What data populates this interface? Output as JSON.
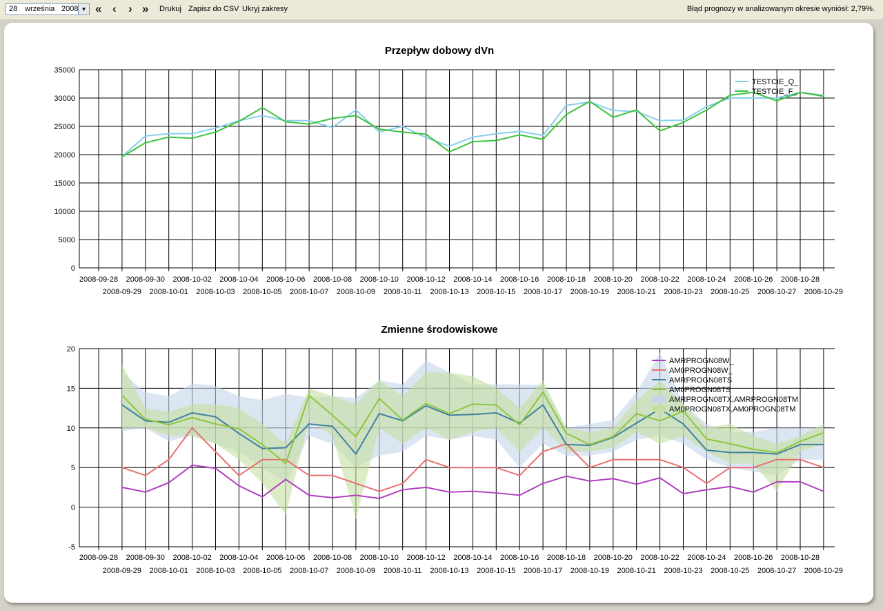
{
  "toolbar": {
    "day": "28",
    "month": "września",
    "year": "2008",
    "nav_first": "«",
    "nav_prev": "‹",
    "nav_next": "›",
    "nav_last": "»",
    "print_label": "Drukuj",
    "csv_label": "Zapisz do CSV",
    "hide_label": "Ukryj zakresy",
    "status_text": "Błąd prognozy w analizowanym okresie wyniósł: 2,79%."
  },
  "chart_data": [
    {
      "type": "line",
      "title": "Przepływ dobowy dVn",
      "xlabel": "",
      "ylabel": "",
      "ylim": [
        0,
        35000
      ],
      "yticks": [
        "0",
        "5000",
        "10000",
        "15000",
        "20000",
        "25000",
        "30000",
        "35000"
      ],
      "grid": true,
      "legend_placement": "top-right",
      "categories": [
        "2008-09-28",
        "2008-09-29",
        "2008-09-30",
        "2008-10-01",
        "2008-10-02",
        "2008-10-03",
        "2008-10-04",
        "2008-10-05",
        "2008-10-06",
        "2008-10-07",
        "2008-10-08",
        "2008-10-09",
        "2008-10-10",
        "2008-10-11",
        "2008-10-12",
        "2008-10-13",
        "2008-10-14",
        "2008-10-15",
        "2008-10-16",
        "2008-10-17",
        "2008-10-18",
        "2008-10-19",
        "2008-10-20",
        "2008-10-21",
        "2008-10-22",
        "2008-10-23",
        "2008-10-24",
        "2008-10-25",
        "2008-10-26",
        "2008-10-27",
        "2008-10-28",
        "2008-10-29"
      ],
      "series": [
        {
          "name": "TESTCIE_Q_",
          "color": "#87ceeb",
          "values": [
            null,
            19700,
            23300,
            23700,
            23700,
            24700,
            26000,
            26900,
            26000,
            26000,
            24800,
            27900,
            24000,
            25000,
            23000,
            21500,
            23100,
            23700,
            24100,
            23400,
            28700,
            29300,
            27800,
            27600,
            26000,
            26100,
            28500,
            30000,
            30000,
            30000,
            31000,
            30500
          ]
        },
        {
          "name": "TESTCIE_F_",
          "color": "#3cc33c",
          "values": [
            null,
            19600,
            22100,
            23100,
            22900,
            24000,
            25900,
            28300,
            25800,
            25400,
            26400,
            26900,
            24500,
            24000,
            23600,
            20500,
            22300,
            22500,
            23500,
            22700,
            27100,
            29400,
            26600,
            27900,
            24200,
            25700,
            27900,
            30500,
            31000,
            29500,
            31000,
            30300
          ]
        }
      ]
    },
    {
      "type": "line",
      "title": "Zmienne środowiskowe",
      "xlabel": "",
      "ylabel": "",
      "ylim": [
        -5,
        20
      ],
      "yticks": [
        "-5",
        "0",
        "5",
        "10",
        "15",
        "20"
      ],
      "grid": true,
      "legend_placement": "top-right",
      "categories": [
        "2008-09-28",
        "2008-09-29",
        "2008-09-30",
        "2008-10-01",
        "2008-10-02",
        "2008-10-03",
        "2008-10-04",
        "2008-10-05",
        "2008-10-06",
        "2008-10-07",
        "2008-10-08",
        "2008-10-09",
        "2008-10-10",
        "2008-10-11",
        "2008-10-12",
        "2008-10-13",
        "2008-10-14",
        "2008-10-15",
        "2008-10-16",
        "2008-10-17",
        "2008-10-18",
        "2008-10-19",
        "2008-10-20",
        "2008-10-21",
        "2008-10-22",
        "2008-10-23",
        "2008-10-24",
        "2008-10-25",
        "2008-10-26",
        "2008-10-27",
        "2008-10-28",
        "2008-10-29"
      ],
      "series": [
        {
          "name": "AMRPROGN08W_",
          "color": "#b040c0",
          "values": [
            null,
            2.5,
            1.9,
            3.1,
            5.3,
            4.9,
            2.7,
            1.3,
            3.5,
            1.5,
            1.2,
            1.5,
            1.1,
            2.2,
            2.5,
            1.9,
            2.0,
            1.8,
            1.5,
            3.0,
            3.9,
            3.3,
            3.6,
            2.9,
            3.7,
            1.7,
            2.2,
            2.6,
            1.9,
            3.2,
            3.2,
            2.0
          ]
        },
        {
          "name": "AM0PROGN08W_",
          "color": "#e87070",
          "values": [
            null,
            5.0,
            4.0,
            6.0,
            10.0,
            7.0,
            4.0,
            6.0,
            6.0,
            4.0,
            4.0,
            3.0,
            2.0,
            3.0,
            6.0,
            5.0,
            5.0,
            5.0,
            4.0,
            7.0,
            8.0,
            5.0,
            6.0,
            6.0,
            6.0,
            5.0,
            3.0,
            5.0,
            5.0,
            6.0,
            6.0,
            5.0
          ]
        },
        {
          "name": "AMRPROGN08TS",
          "color": "#3f7f9f",
          "values": [
            null,
            12.9,
            10.9,
            10.7,
            11.9,
            11.4,
            9.3,
            7.4,
            7.5,
            10.5,
            10.2,
            6.7,
            11.8,
            10.9,
            12.8,
            11.6,
            11.7,
            11.9,
            10.6,
            12.9,
            7.9,
            7.8,
            8.8,
            10.6,
            12.4,
            10.5,
            7.2,
            6.9,
            6.9,
            6.7,
            7.9,
            7.9
          ]
        },
        {
          "name": "AM0PROGN08TS",
          "color": "#8cc63f",
          "values": [
            null,
            14.1,
            11.1,
            10.4,
            11.3,
            10.5,
            9.9,
            7.9,
            5.5,
            14.1,
            11.6,
            8.9,
            13.7,
            11.0,
            13.1,
            11.8,
            13.0,
            12.9,
            10.4,
            14.5,
            9.3,
            7.9,
            8.9,
            11.8,
            10.9,
            12.1,
            8.6,
            8.0,
            7.3,
            6.9,
            8.3,
            9.4
          ]
        },
        {
          "name": "AMRPROGN08TX,AMRPROGN08TM",
          "color": "#c5d5ea",
          "type": "range",
          "low": [
            null,
            9.6,
            10.0,
            8.3,
            9.0,
            8.0,
            7.0,
            5.0,
            3.0,
            9.0,
            8.0,
            5.0,
            6.5,
            7.0,
            9.0,
            8.5,
            9.0,
            8.5,
            5.0,
            8.0,
            6.5,
            6.5,
            7.0,
            8.5,
            9.0,
            8.0,
            6.0,
            5.0,
            4.5,
            4.0,
            6.0,
            6.0
          ],
          "high": [
            null,
            17.0,
            14.5,
            14.0,
            15.6,
            15.3,
            14.0,
            13.5,
            14.3,
            13.8,
            14.0,
            13.8,
            16.0,
            15.5,
            18.5,
            17.0,
            15.5,
            15.5,
            15.5,
            15.4,
            10.0,
            10.5,
            11.0,
            14.5,
            19.5,
            13.0,
            10.5,
            9.5,
            9.5,
            10.0,
            10.0,
            10.0
          ]
        },
        {
          "name": "AM0PROGN08TX,AM0PROGN08TM",
          "color": "#c4dfa0",
          "type": "range",
          "low": [
            null,
            10.0,
            10.0,
            9.0,
            9.0,
            8.0,
            6.0,
            3.0,
            -1.0,
            11.0,
            9.0,
            -1.5,
            10.0,
            8.0,
            10.0,
            8.5,
            9.5,
            10.0,
            7.0,
            10.0,
            7.0,
            7.0,
            7.5,
            9.5,
            8.0,
            9.0,
            7.0,
            5.5,
            5.5,
            2.0,
            7.0,
            8.0
          ],
          "high": [
            null,
            18.0,
            12.5,
            12.0,
            13.0,
            13.0,
            12.5,
            10.5,
            8.0,
            15.0,
            14.0,
            13.0,
            16.0,
            14.0,
            17.0,
            17.0,
            16.5,
            15.0,
            12.5,
            16.0,
            10.0,
            9.5,
            10.0,
            13.5,
            16.0,
            13.0,
            10.0,
            10.5,
            9.0,
            8.0,
            9.0,
            10.5
          ]
        }
      ]
    }
  ]
}
